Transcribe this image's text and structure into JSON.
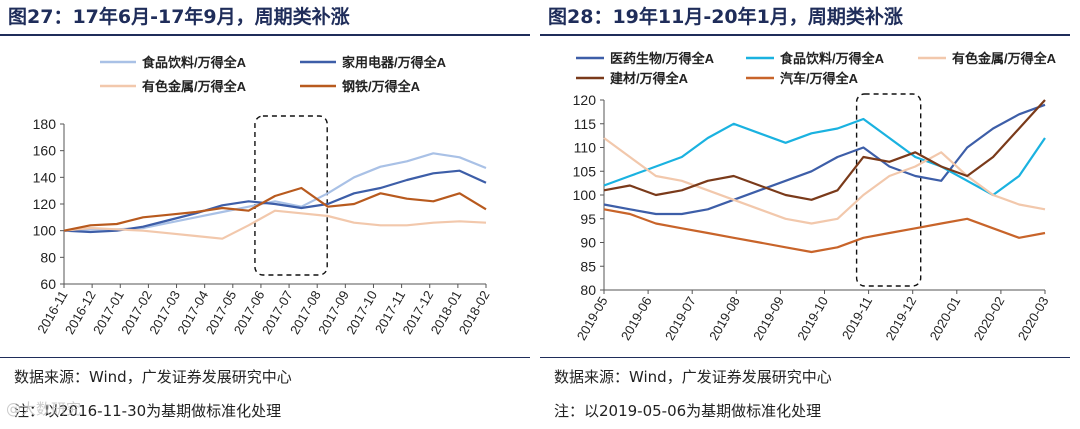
{
  "chart_data": [
    {
      "type": "line",
      "title": "图27：17年6月-17年9月，周期类补涨",
      "source": "数据来源：Wind，广发证券发展研究中心",
      "note": "注：以2016-11-30为基期做标准化处理",
      "ylim": [
        60,
        180
      ],
      "yticks": [
        60,
        80,
        100,
        120,
        140,
        160,
        180
      ],
      "x_labels": [
        "2016-11",
        "2016-12",
        "2017-01",
        "2017-02",
        "2017-03",
        "2017-04",
        "2017-05",
        "2017-06",
        "2017-07",
        "2017-08",
        "2017-09",
        "2017-10",
        "2017-11",
        "2017-12",
        "2018-01",
        "2018-02"
      ],
      "legend_position": "top",
      "highlight_range": [
        "2017-06",
        "2017-08"
      ],
      "series": [
        {
          "name": "食品饮料/万得全A",
          "color": "#a9c1e6",
          "values": [
            100,
            101,
            101,
            102,
            106,
            110,
            114,
            118,
            122,
            118,
            128,
            140,
            148,
            152,
            158,
            155,
            147
          ]
        },
        {
          "name": "家用电器/万得全A",
          "color": "#3d5ea8",
          "values": [
            100,
            99,
            100,
            103,
            108,
            113,
            119,
            122,
            120,
            117,
            120,
            128,
            132,
            138,
            143,
            145,
            136
          ]
        },
        {
          "name": "有色金属/万得全A",
          "color": "#f2c8ac",
          "values": [
            100,
            102,
            101,
            100,
            98,
            96,
            94,
            104,
            115,
            113,
            111,
            106,
            104,
            104,
            106,
            107,
            106
          ]
        },
        {
          "name": "钢铁/万得全A",
          "color": "#b85a1e",
          "values": [
            100,
            104,
            105,
            110,
            112,
            114,
            117,
            115,
            126,
            132,
            118,
            120,
            128,
            124,
            122,
            128,
            116
          ]
        }
      ]
    },
    {
      "type": "line",
      "title": "图28：19年11月-20年1月，周期类补涨",
      "source": "数据来源：Wind，广发证券发展研究中心",
      "note": "注：以2019-05-06为基期做标准化处理",
      "ylim": [
        80,
        120
      ],
      "yticks": [
        80,
        85,
        90,
        95,
        100,
        105,
        110,
        115,
        120
      ],
      "x_labels": [
        "2019-05",
        "2019-06",
        "2019-07",
        "2019-08",
        "2019-09",
        "2019-10",
        "2019-11",
        "2019-12",
        "2020-01",
        "2020-02",
        "2020-03"
      ],
      "legend_position": "top",
      "highlight_range": [
        "2019-11",
        "2019-12"
      ],
      "series": [
        {
          "name": "医药生物/万得全A",
          "color": "#3d5ea8",
          "values": [
            98,
            97,
            96,
            96,
            97,
            99,
            101,
            103,
            105,
            108,
            110,
            106,
            104,
            103,
            110,
            114,
            117,
            119
          ]
        },
        {
          "name": "食品饮料/万得全A",
          "color": "#1ab2e0",
          "values": [
            102,
            104,
            106,
            108,
            112,
            115,
            113,
            111,
            113,
            114,
            116,
            112,
            108,
            106,
            103,
            100,
            104,
            112
          ]
        },
        {
          "name": "有色金属/万得全A",
          "color": "#f2c8ac",
          "values": [
            112,
            108,
            104,
            103,
            101,
            99,
            97,
            95,
            94,
            95,
            100,
            104,
            106,
            109,
            104,
            100,
            98,
            97
          ]
        },
        {
          "name": "建材/万得全A",
          "color": "#7a3a1a",
          "values": [
            101,
            102,
            100,
            101,
            103,
            104,
            102,
            100,
            99,
            101,
            108,
            107,
            109,
            106,
            104,
            108,
            114,
            120
          ]
        },
        {
          "name": "汽车/万得全A",
          "color": "#c8642a",
          "values": [
            97,
            96,
            94,
            93,
            92,
            91,
            90,
            89,
            88,
            89,
            91,
            92,
            93,
            94,
            95,
            93,
            91,
            92
          ]
        }
      ]
    }
  ],
  "watermark": "@大数研究"
}
